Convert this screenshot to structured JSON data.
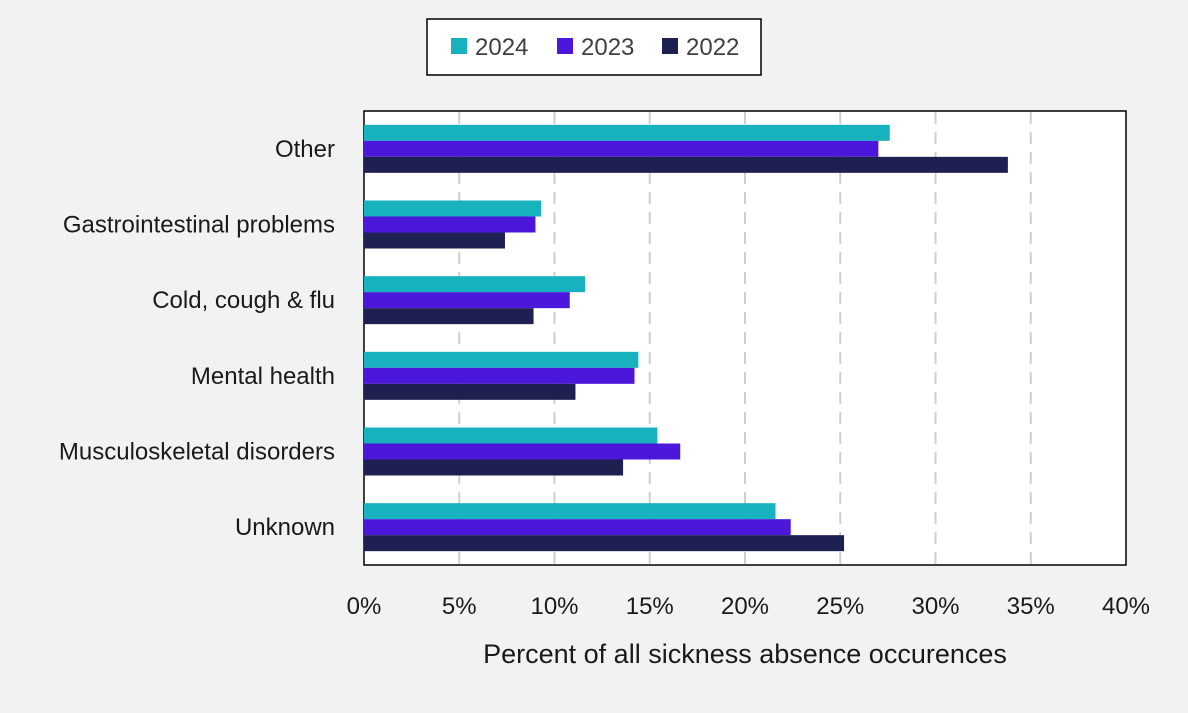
{
  "chart_data": {
    "type": "bar",
    "orientation": "horizontal",
    "categories": [
      "Other",
      "Gastrointestinal problems",
      "Cold, cough & flu",
      "Mental health",
      "Musculoskeletal disorders",
      "Unknown"
    ],
    "series": [
      {
        "name": "2024",
        "color": "#17b2bd",
        "values": [
          27.6,
          9.3,
          11.6,
          14.4,
          15.4,
          21.6
        ]
      },
      {
        "name": "2023",
        "color": "#4a17db",
        "values": [
          27.0,
          9.0,
          10.8,
          14.2,
          16.6,
          22.4
        ]
      },
      {
        "name": "2022",
        "color": "#1f2052",
        "values": [
          33.8,
          7.4,
          8.9,
          11.1,
          13.6,
          25.2
        ]
      }
    ],
    "xlim": [
      0,
      40
    ],
    "xticks": [
      "0%",
      "5%",
      "10%",
      "15%",
      "20%",
      "25%",
      "30%",
      "35%",
      "40%"
    ],
    "xlabel": "Percent of all sickness absence occurences",
    "grid": "vertical dashed",
    "legend_position": "top"
  }
}
